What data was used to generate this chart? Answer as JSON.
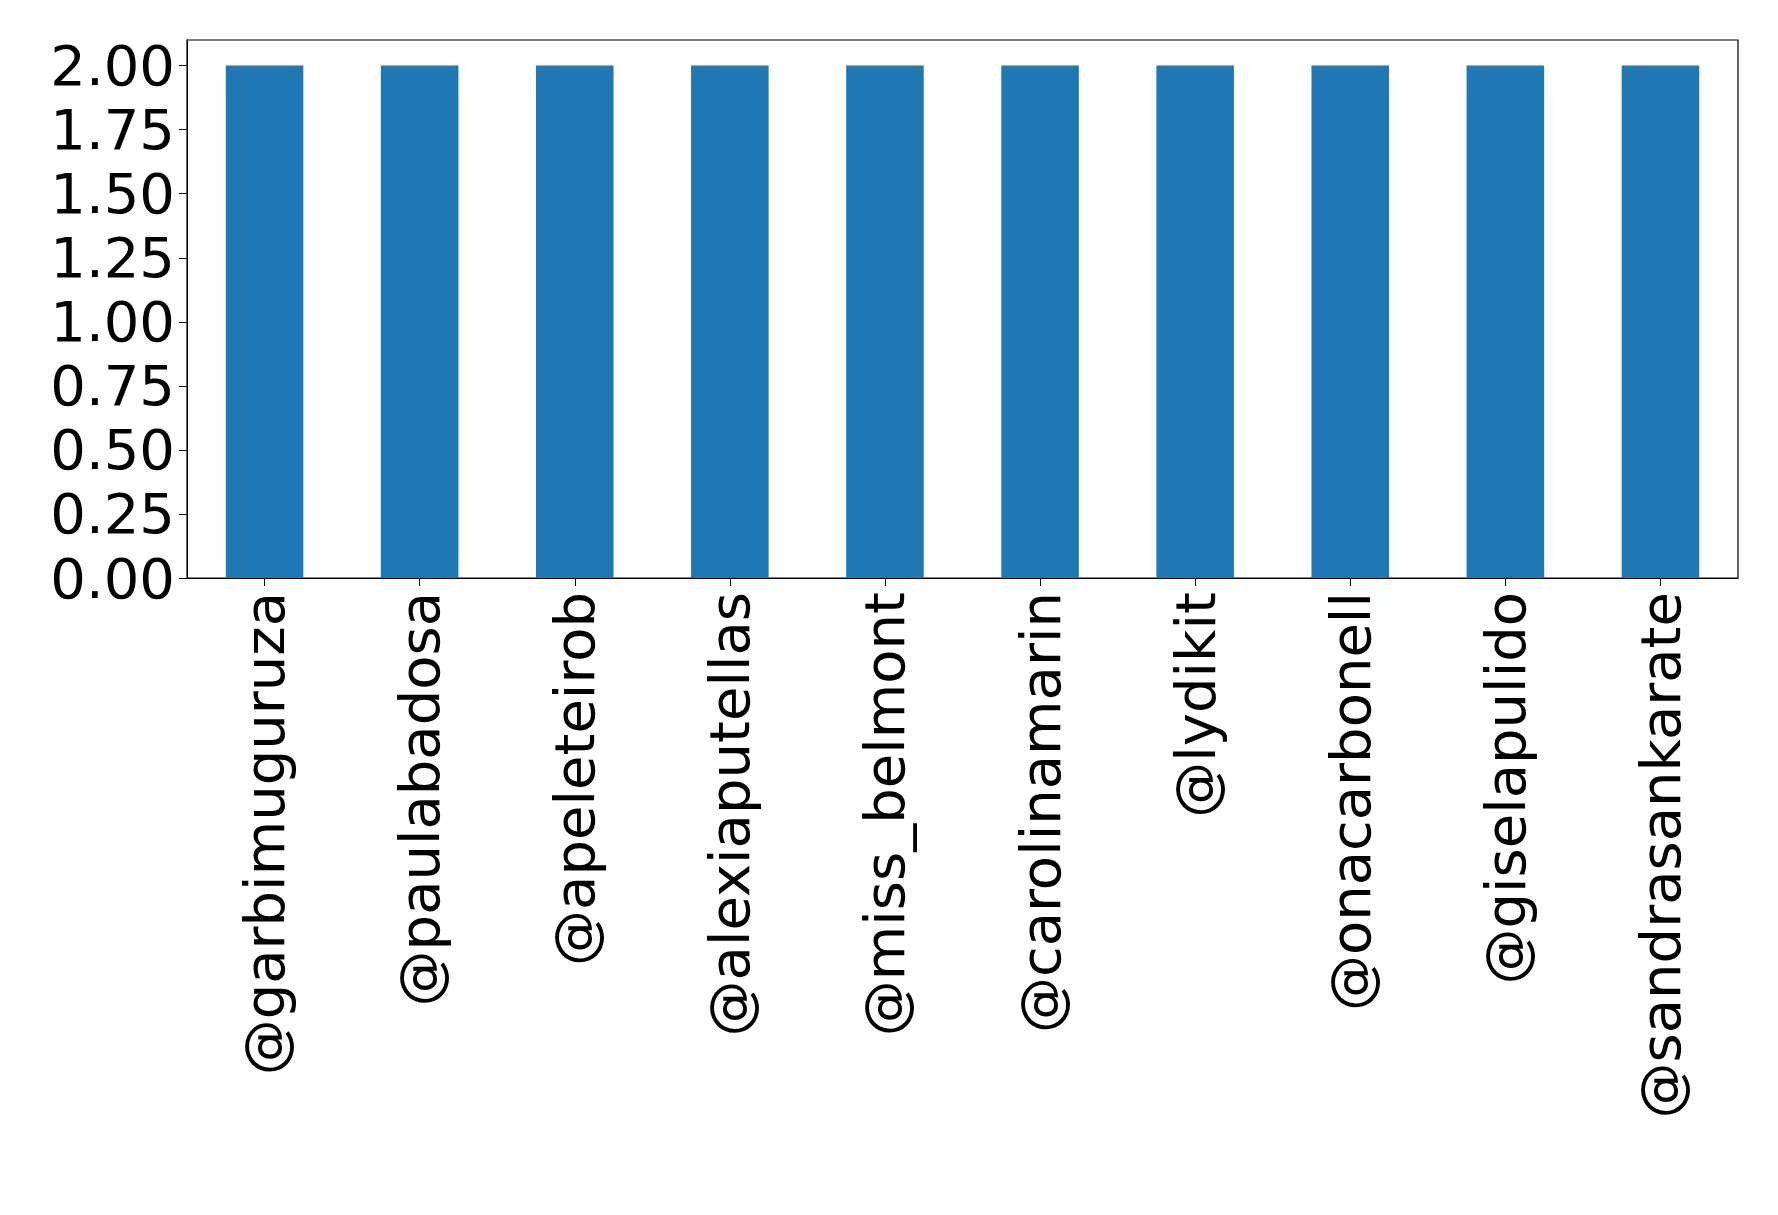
{
  "chart_data": {
    "type": "bar",
    "categories": [
      "@garbimuguruza",
      "@paulabadosa",
      "@apeleteirob",
      "@alexiaputellas",
      "@miss_belmont",
      "@carolinamarin",
      "@lydikit",
      "@onacarbonell",
      "@giselapulido",
      "@sandrasankarate"
    ],
    "values": [
      2,
      2,
      2,
      2,
      2,
      2,
      2,
      2,
      2,
      2
    ],
    "color": "#1f77b4",
    "ylim": [
      0,
      2.1
    ],
    "yticks": [
      {
        "value": 0,
        "label": "0.00"
      },
      {
        "value": 0.25,
        "label": "0.25"
      },
      {
        "value": 0.5,
        "label": "0.50"
      },
      {
        "value": 0.75,
        "label": "0.75"
      },
      {
        "value": 1,
        "label": "1.00"
      },
      {
        "value": 1.25,
        "label": "1.25"
      },
      {
        "value": 1.5,
        "label": "1.50"
      },
      {
        "value": 1.75,
        "label": "1.75"
      },
      {
        "value": 2,
        "label": "2.00"
      }
    ],
    "grid": false
  }
}
